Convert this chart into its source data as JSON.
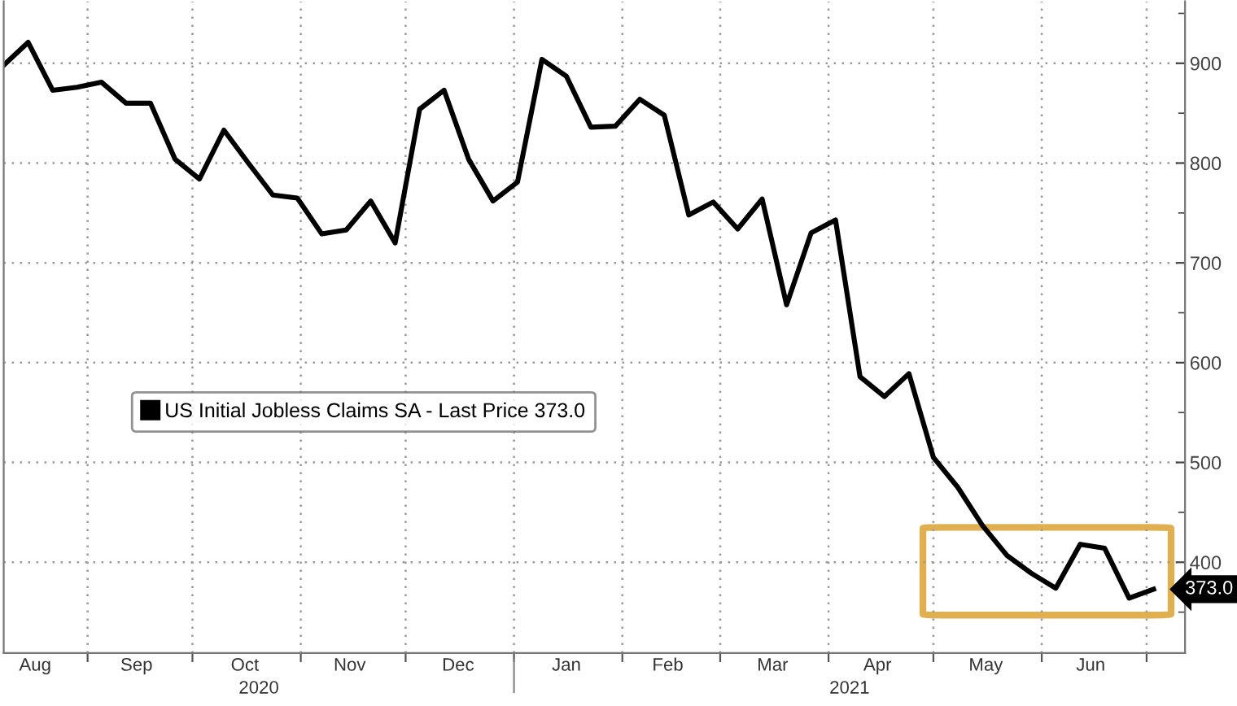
{
  "chart_data": {
    "type": "line",
    "x": [
      "2020-08-08",
      "2020-08-15",
      "2020-08-22",
      "2020-08-29",
      "2020-09-05",
      "2020-09-12",
      "2020-09-19",
      "2020-09-26",
      "2020-10-03",
      "2020-10-10",
      "2020-10-17",
      "2020-10-24",
      "2020-10-31",
      "2020-11-07",
      "2020-11-14",
      "2020-11-21",
      "2020-11-28",
      "2020-12-05",
      "2020-12-12",
      "2020-12-19",
      "2020-12-26",
      "2021-01-02",
      "2021-01-09",
      "2021-01-16",
      "2021-01-23",
      "2021-01-30",
      "2021-02-06",
      "2021-02-13",
      "2021-02-20",
      "2021-02-27",
      "2021-03-06",
      "2021-03-13",
      "2021-03-20",
      "2021-03-27",
      "2021-04-03",
      "2021-04-10",
      "2021-04-17",
      "2021-04-24",
      "2021-05-01",
      "2021-05-08",
      "2021-05-15",
      "2021-05-22",
      "2021-05-29",
      "2021-06-05",
      "2021-06-12",
      "2021-06-19",
      "2021-06-26",
      "2021-07-03"
    ],
    "series": [
      {
        "name": "US Initial Jobless Claims SA - Last Price 373.0",
        "color": "#000000",
        "values": [
          898,
          921,
          873,
          876,
          881,
          860,
          860,
          804,
          784,
          833,
          800,
          768,
          765,
          729,
          733,
          762,
          720,
          854,
          873,
          804,
          762,
          781,
          904,
          887,
          836,
          837,
          864,
          848,
          748,
          761,
          734,
          764,
          658,
          730,
          743,
          586,
          566,
          589,
          505,
          475,
          437,
          407,
          389,
          374,
          418,
          414,
          364,
          373
        ]
      }
    ],
    "xlim": [
      "2020-08-08",
      "2021-07-12"
    ],
    "xticks": [
      {
        "value": "2020-09-01",
        "label": null
      },
      {
        "value": "2020-10-01",
        "label": null
      },
      {
        "value": "2020-11-01",
        "label": null
      },
      {
        "value": "2020-12-01",
        "label": null
      },
      {
        "value": "2021-01-01",
        "label": null
      },
      {
        "value": "2021-02-01",
        "label": null
      },
      {
        "value": "2021-03-01",
        "label": null
      },
      {
        "value": "2021-04-01",
        "label": null
      },
      {
        "value": "2021-05-01",
        "label": null
      },
      {
        "value": "2021-06-01",
        "label": null
      },
      {
        "value": "2021-07-01",
        "label": null
      },
      {
        "value": "2020-08-17",
        "label": "Aug"
      },
      {
        "value": "2020-09-15",
        "label": "Sep"
      },
      {
        "value": "2020-10-16",
        "label": "Oct"
      },
      {
        "value": "2020-11-15",
        "label": "Nov"
      },
      {
        "value": "2020-12-16",
        "label": "Dec"
      },
      {
        "value": "2021-01-16",
        "label": "Jan"
      },
      {
        "value": "2021-02-14",
        "label": "Feb"
      },
      {
        "value": "2021-03-16",
        "label": "Mar"
      },
      {
        "value": "2021-04-15",
        "label": "Apr"
      },
      {
        "value": "2021-05-16",
        "label": "May"
      },
      {
        "value": "2021-06-15",
        "label": "Jun"
      }
    ],
    "ylim": [
      309,
      962
    ],
    "yticks": [
      {
        "value": 350,
        "label": null
      },
      400,
      {
        "value": 450,
        "label": null
      },
      500,
      {
        "value": 550,
        "label": null
      },
      600,
      {
        "value": 650,
        "label": null
      },
      700,
      {
        "value": 750,
        "label": null
      },
      800,
      {
        "value": 850,
        "label": null
      },
      900,
      {
        "value": 950,
        "label": null
      }
    ],
    "grid": true,
    "legend": "left",
    "marker": "none",
    "line_style": "solid",
    "annotations": [
      "2020",
      "2021",
      {
        "text": "373.0",
        "x": "2021-07-03",
        "y": 373
      }
    ]
  }
}
